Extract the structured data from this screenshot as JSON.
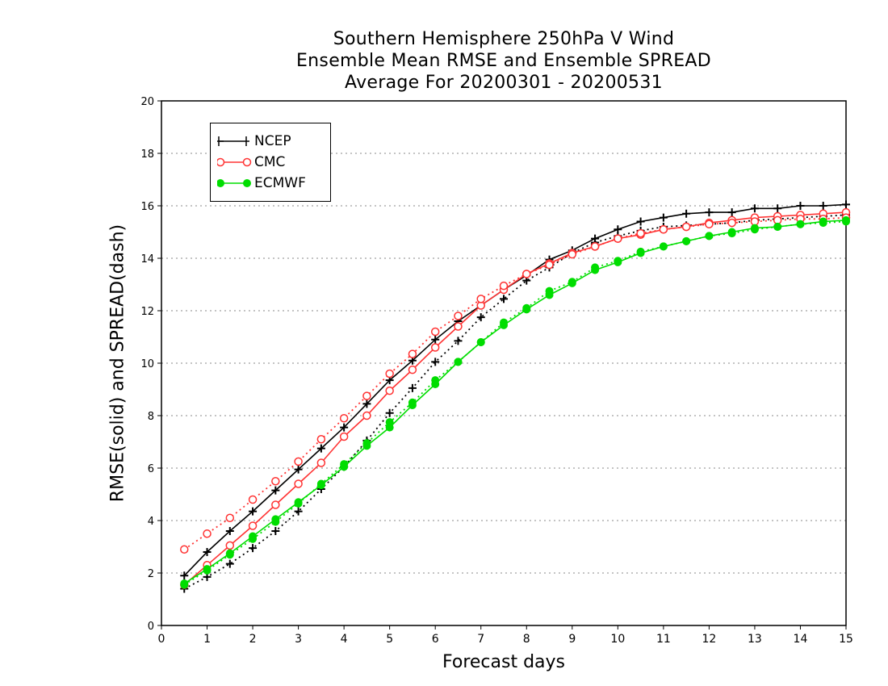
{
  "title_lines": [
    "Southern Hemisphere 250hPa V Wind",
    "Ensemble Mean RMSE and Ensemble SPREAD",
    "Average For 20200301 - 20200531"
  ],
  "chart_data": {
    "type": "line",
    "title": "Southern Hemisphere 250hPa V Wind / Ensemble Mean RMSE and Ensemble SPREAD / Average For 20200301 - 20200531",
    "xlabel": "Forecast days",
    "ylabel": "RMSE(solid) and SPREAD(dash)",
    "xlim": [
      0,
      15
    ],
    "ylim": [
      0,
      20
    ],
    "xticks": [
      0,
      1,
      2,
      3,
      4,
      5,
      6,
      7,
      8,
      9,
      10,
      11,
      12,
      13,
      14,
      15
    ],
    "yticks": [
      0,
      2,
      4,
      6,
      8,
      10,
      12,
      14,
      16,
      18,
      20
    ],
    "grid": "horizontal dotted",
    "legend_position": "top-left",
    "x": [
      0.5,
      1,
      1.5,
      2,
      2.5,
      3,
      3.5,
      4,
      4.5,
      5,
      5.5,
      6,
      6.5,
      7,
      7.5,
      8,
      8.5,
      9,
      9.5,
      10,
      10.5,
      11,
      11.5,
      12,
      12.5,
      13,
      13.5,
      14,
      14.5,
      15
    ],
    "series": [
      {
        "name": "NCEP",
        "color": "#000000",
        "marker": "plus",
        "style": "solid",
        "metric": "RMSE",
        "values": [
          1.9,
          2.8,
          3.6,
          4.35,
          5.15,
          5.95,
          6.75,
          7.55,
          8.45,
          9.35,
          10.1,
          10.9,
          11.6,
          12.2,
          12.8,
          13.35,
          13.95,
          14.3,
          14.75,
          15.1,
          15.4,
          15.55,
          15.7,
          15.75,
          15.75,
          15.9,
          15.9,
          16.0,
          16.0,
          16.05
        ]
      },
      {
        "name": "NCEP",
        "color": "#000000",
        "marker": "plus",
        "style": "dash",
        "metric": "SPREAD",
        "values": [
          1.4,
          1.85,
          2.35,
          2.95,
          3.6,
          4.35,
          5.2,
          6.05,
          7.05,
          8.1,
          9.05,
          10.05,
          10.85,
          11.75,
          12.45,
          13.15,
          13.65,
          14.2,
          14.6,
          14.85,
          15.05,
          15.2,
          15.25,
          15.3,
          15.35,
          15.45,
          15.5,
          15.55,
          15.6,
          15.65
        ]
      },
      {
        "name": "CMC",
        "color": "#ff3333",
        "marker": "open-circle",
        "style": "solid",
        "metric": "RMSE",
        "values": [
          1.55,
          2.3,
          3.05,
          3.8,
          4.6,
          5.4,
          6.2,
          7.2,
          8.0,
          8.95,
          9.75,
          10.6,
          11.4,
          12.2,
          12.8,
          13.4,
          13.8,
          14.2,
          14.45,
          14.75,
          14.9,
          15.1,
          15.2,
          15.35,
          15.45,
          15.55,
          15.6,
          15.65,
          15.7,
          15.75
        ]
      },
      {
        "name": "CMC",
        "color": "#ff3333",
        "marker": "open-circle",
        "style": "dash",
        "metric": "SPREAD",
        "values": [
          2.9,
          3.5,
          4.1,
          4.8,
          5.5,
          6.25,
          7.1,
          7.9,
          8.75,
          9.6,
          10.35,
          11.2,
          11.8,
          12.45,
          12.95,
          13.4,
          13.75,
          14.15,
          14.45,
          14.75,
          14.95,
          15.1,
          15.2,
          15.3,
          15.35,
          15.4,
          15.45,
          15.5,
          15.5,
          15.55
        ]
      },
      {
        "name": "ECMWF",
        "color": "#00dd00",
        "marker": "filled-circle",
        "style": "solid",
        "metric": "RMSE",
        "values": [
          1.6,
          2.15,
          2.75,
          3.4,
          4.05,
          4.7,
          5.35,
          6.05,
          6.85,
          7.55,
          8.4,
          9.2,
          10.05,
          10.8,
          11.45,
          12.05,
          12.6,
          13.05,
          13.55,
          13.85,
          14.2,
          14.45,
          14.65,
          14.85,
          15.0,
          15.15,
          15.2,
          15.3,
          15.4,
          15.45
        ]
      },
      {
        "name": "ECMWF",
        "color": "#00dd00",
        "marker": "filled-circle",
        "style": "dash",
        "metric": "SPREAD",
        "values": [
          1.55,
          2.1,
          2.7,
          3.3,
          3.95,
          4.65,
          5.4,
          6.15,
          6.95,
          7.75,
          8.5,
          9.35,
          10.05,
          10.8,
          11.55,
          12.1,
          12.75,
          13.1,
          13.65,
          13.9,
          14.25,
          14.45,
          14.65,
          14.85,
          14.95,
          15.1,
          15.2,
          15.3,
          15.35,
          15.4
        ]
      }
    ]
  },
  "legend": [
    {
      "label": "NCEP",
      "color": "#000000",
      "marker": "plus"
    },
    {
      "label": "CMC",
      "color": "#ff3333",
      "marker": "open-circle"
    },
    {
      "label": "ECMWF",
      "color": "#00dd00",
      "marker": "filled-circle"
    }
  ]
}
